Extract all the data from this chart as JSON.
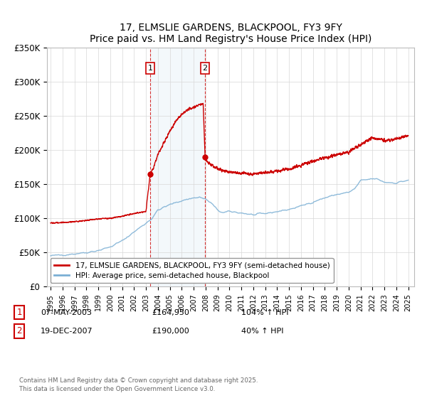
{
  "title": "17, ELMSLIE GARDENS, BLACKPOOL, FY3 9FY",
  "subtitle": "Price paid vs. HM Land Registry's House Price Index (HPI)",
  "ylim": [
    0,
    350000
  ],
  "yticks": [
    0,
    50000,
    100000,
    150000,
    200000,
    250000,
    300000,
    350000
  ],
  "ytick_labels": [
    "£0",
    "£50K",
    "£100K",
    "£150K",
    "£200K",
    "£250K",
    "£300K",
    "£350K"
  ],
  "hpi_color": "#7bafd4",
  "price_color": "#cc0000",
  "shade_color": "#d8e8f5",
  "purchase1_date": 2003.35,
  "purchase1_price": 164950,
  "purchase2_date": 2007.96,
  "purchase2_price": 190000,
  "legend_entries": [
    "17, ELMSLIE GARDENS, BLACKPOOL, FY3 9FY (semi-detached house)",
    "HPI: Average price, semi-detached house, Blackpool"
  ],
  "footer": "Contains HM Land Registry data © Crown copyright and database right 2025.\nThis data is licensed under the Open Government Licence v3.0.",
  "background_color": "#ffffff",
  "xlim_left": 1994.7,
  "xlim_right": 2025.5
}
